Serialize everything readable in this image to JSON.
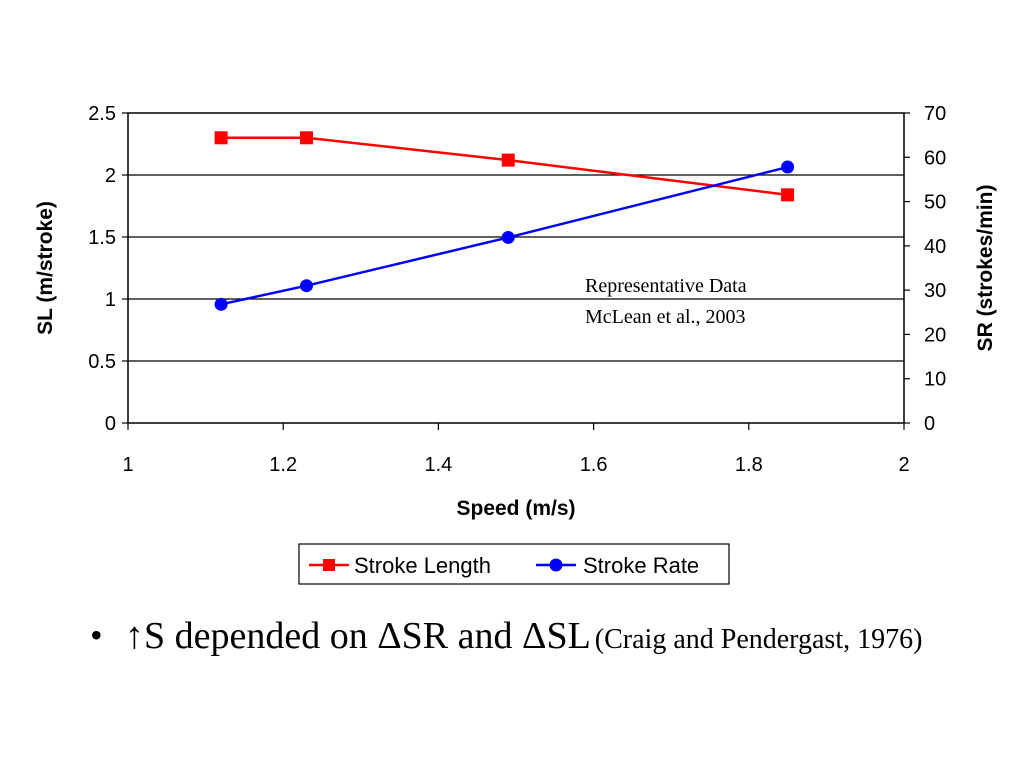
{
  "chart_data": {
    "type": "line",
    "title": "",
    "xlabel": "Speed (m/s)",
    "ylabel": "SL (m/stroke)",
    "y2label": "SR (strokes/min)",
    "xlim": [
      1,
      2
    ],
    "ylim": [
      0,
      2.5
    ],
    "y2lim": [
      0,
      70
    ],
    "xticks": [
      "1",
      "1.2",
      "1.4",
      "1.6",
      "1.8",
      "2"
    ],
    "yticks": [
      "0",
      "0.5",
      "1",
      "1.5",
      "2",
      "2.5"
    ],
    "y2ticks": [
      "0",
      "10",
      "20",
      "30",
      "40",
      "50",
      "60",
      "70"
    ],
    "grid": "horizontal major gridlines",
    "legend_position": "bottom",
    "series": [
      {
        "name": "Stroke Length",
        "axis": "left",
        "color": "#ff0000",
        "marker": "square",
        "x": [
          1.12,
          1.23,
          1.49,
          1.85
        ],
        "y": [
          2.3,
          2.3,
          2.12,
          1.84
        ]
      },
      {
        "name": "Stroke Rate",
        "axis": "right",
        "color": "#0000ff",
        "marker": "circle",
        "x": [
          1.12,
          1.23,
          1.49,
          1.85
        ],
        "y": [
          26.8,
          31.0,
          41.9,
          57.8
        ]
      }
    ],
    "annotations": [
      "Representative Data",
      "McLean et al., 2003"
    ]
  },
  "bullet": {
    "symbol": "•",
    "main": "↑S depended on ΔSR and ΔSL",
    "citation": "(Craig and Pendergast, 1976)"
  }
}
